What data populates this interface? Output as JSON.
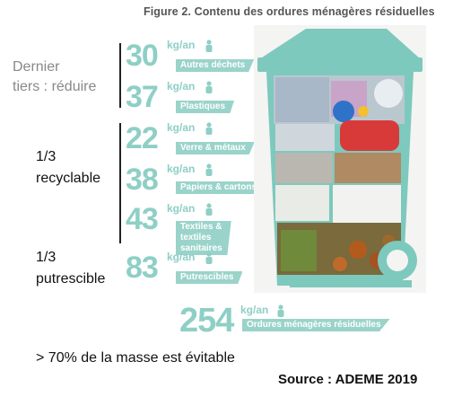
{
  "figure_title": "Figure 2. Contenu des ordures ménagères résiduelles",
  "groups": {
    "reduce": "Dernier\ntiers : réduire",
    "recyclable_fraction": "1/3",
    "recyclable_label": "recyclable",
    "putrescible_fraction": "1/3",
    "putrescible_label": "putrescible"
  },
  "unit": "kg/an",
  "rows": [
    {
      "value": "30",
      "label": "Autres déchets"
    },
    {
      "value": "37",
      "label": "Plastiques"
    },
    {
      "value": "22",
      "label": "Verre & métaux"
    },
    {
      "value": "38",
      "label": "Papiers & cartons"
    },
    {
      "value": "43",
      "label": "Textiles & textiles\nsanitaires"
    },
    {
      "value": "83",
      "label": "Putrescibles"
    }
  ],
  "total": {
    "value": "254",
    "label": "Ordures ménagères résiduelles"
  },
  "footer": "> 70% de la masse est évitable",
  "source": "Source : ADEME 2019",
  "colors": {
    "accent": "#8ecfc6",
    "bin": "#7dc9bd"
  }
}
